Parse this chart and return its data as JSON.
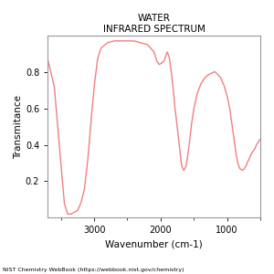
{
  "title_line1": "WATER",
  "title_line2": "INFRARED SPECTRUM",
  "xlabel": "Wavenumber (cm-1)",
  "ylabel": "Transmitance",
  "footer": "NIST Chemistry WebBook (https://webbook.nist.gov/chemistry)",
  "line_color": "#f08080",
  "xlim": [
    3700,
    500
  ],
  "ylim": [
    0.0,
    1.0
  ],
  "xticks": [
    3000,
    2000,
    1000
  ],
  "yticks": [
    0.2,
    0.4,
    0.6,
    0.8
  ],
  "bg_color": "#ffffff"
}
